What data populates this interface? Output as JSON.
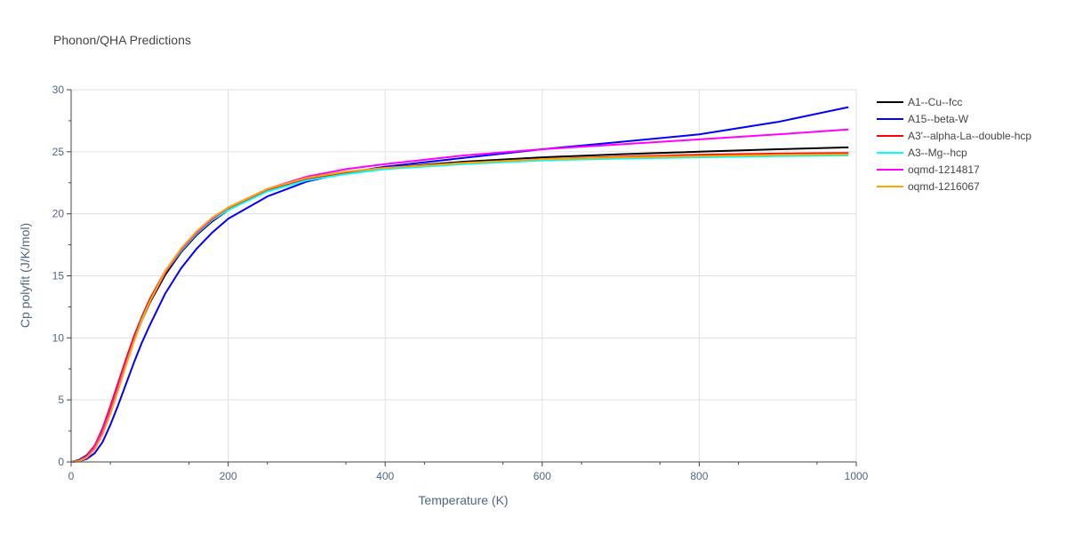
{
  "chart_data": {
    "type": "line",
    "title": "Phonon/QHA Predictions",
    "xlabel": "Temperature (K)",
    "ylabel": "Cp polyfit (J/K/mol)",
    "xlim": [
      0,
      1000
    ],
    "ylim": [
      0,
      30
    ],
    "xticks": [
      0,
      200,
      400,
      600,
      800,
      1000
    ],
    "yticks": [
      0,
      5,
      10,
      15,
      20,
      25,
      30
    ],
    "grid": true,
    "legend_position": "right",
    "series": [
      {
        "name": "A1--Cu--fcc",
        "color": "#000000",
        "x": [
          0,
          10,
          20,
          30,
          40,
          50,
          60,
          70,
          80,
          90,
          100,
          120,
          140,
          160,
          180,
          200,
          250,
          300,
          350,
          400,
          500,
          600,
          700,
          800,
          900,
          990
        ],
        "y": [
          0,
          0.15,
          0.55,
          1.3,
          2.6,
          4.3,
          6.1,
          8.0,
          9.8,
          11.4,
          12.8,
          15.1,
          16.9,
          18.3,
          19.4,
          20.3,
          21.9,
          22.8,
          23.3,
          23.7,
          24.2,
          24.55,
          24.8,
          25.0,
          25.2,
          25.35
        ]
      },
      {
        "name": "A15--beta-W",
        "color": "#0000ff",
        "x": [
          0,
          10,
          20,
          30,
          40,
          50,
          60,
          70,
          80,
          90,
          100,
          120,
          140,
          160,
          180,
          200,
          250,
          300,
          350,
          400,
          500,
          600,
          700,
          800,
          900,
          990
        ],
        "y": [
          0,
          0.05,
          0.25,
          0.7,
          1.6,
          3.0,
          4.6,
          6.3,
          8.0,
          9.6,
          11.0,
          13.6,
          15.6,
          17.2,
          18.5,
          19.6,
          21.4,
          22.6,
          23.3,
          23.8,
          24.5,
          25.2,
          25.8,
          26.4,
          27.4,
          28.6
        ]
      },
      {
        "name": "A3'--alpha-La--double-hcp",
        "color": "#ff0000",
        "x": [
          0,
          10,
          20,
          30,
          40,
          50,
          60,
          70,
          80,
          90,
          100,
          120,
          140,
          160,
          180,
          200,
          250,
          300,
          350,
          400,
          500,
          600,
          700,
          800,
          900,
          990
        ],
        "y": [
          0,
          0.1,
          0.5,
          1.3,
          2.7,
          4.5,
          6.4,
          8.3,
          10.1,
          11.7,
          13.1,
          15.4,
          17.1,
          18.5,
          19.6,
          20.4,
          21.9,
          22.8,
          23.3,
          23.7,
          24.1,
          24.4,
          24.6,
          24.75,
          24.85,
          24.9
        ]
      },
      {
        "name": "A3--Mg--hcp",
        "color": "#00ffff",
        "x": [
          0,
          10,
          20,
          30,
          40,
          50,
          60,
          70,
          80,
          90,
          100,
          120,
          140,
          160,
          180,
          200,
          250,
          300,
          350,
          400,
          500,
          600,
          700,
          800,
          900,
          990
        ],
        "y": [
          0,
          0.1,
          0.45,
          1.2,
          2.5,
          4.2,
          6.1,
          8.0,
          9.8,
          11.5,
          12.9,
          15.3,
          17.0,
          18.4,
          19.5,
          20.3,
          21.8,
          22.7,
          23.2,
          23.6,
          24.0,
          24.3,
          24.45,
          24.55,
          24.65,
          24.7
        ]
      },
      {
        "name": "oqmd-1214817",
        "color": "#ff00ff",
        "x": [
          0,
          10,
          20,
          30,
          40,
          50,
          60,
          70,
          80,
          90,
          100,
          120,
          140,
          160,
          180,
          200,
          250,
          300,
          350,
          400,
          500,
          600,
          700,
          800,
          900,
          990
        ],
        "y": [
          0,
          0.1,
          0.45,
          1.2,
          2.5,
          4.2,
          6.1,
          8.0,
          9.8,
          11.4,
          12.9,
          15.3,
          17.1,
          18.5,
          19.6,
          20.5,
          22.0,
          23.0,
          23.6,
          24.0,
          24.7,
          25.2,
          25.6,
          26.0,
          26.4,
          26.8
        ]
      },
      {
        "name": "oqmd-1216067",
        "color": "#ffa500",
        "x": [
          0,
          10,
          20,
          30,
          40,
          50,
          60,
          70,
          80,
          90,
          100,
          120,
          140,
          160,
          180,
          200,
          250,
          300,
          350,
          400,
          500,
          600,
          700,
          800,
          900,
          990
        ],
        "y": [
          0,
          0.05,
          0.35,
          1.0,
          2.2,
          3.9,
          5.8,
          7.8,
          9.7,
          11.4,
          12.9,
          15.4,
          17.2,
          18.6,
          19.7,
          20.5,
          22.0,
          22.9,
          23.4,
          23.7,
          24.1,
          24.4,
          24.55,
          24.65,
          24.75,
          24.8
        ]
      }
    ]
  }
}
